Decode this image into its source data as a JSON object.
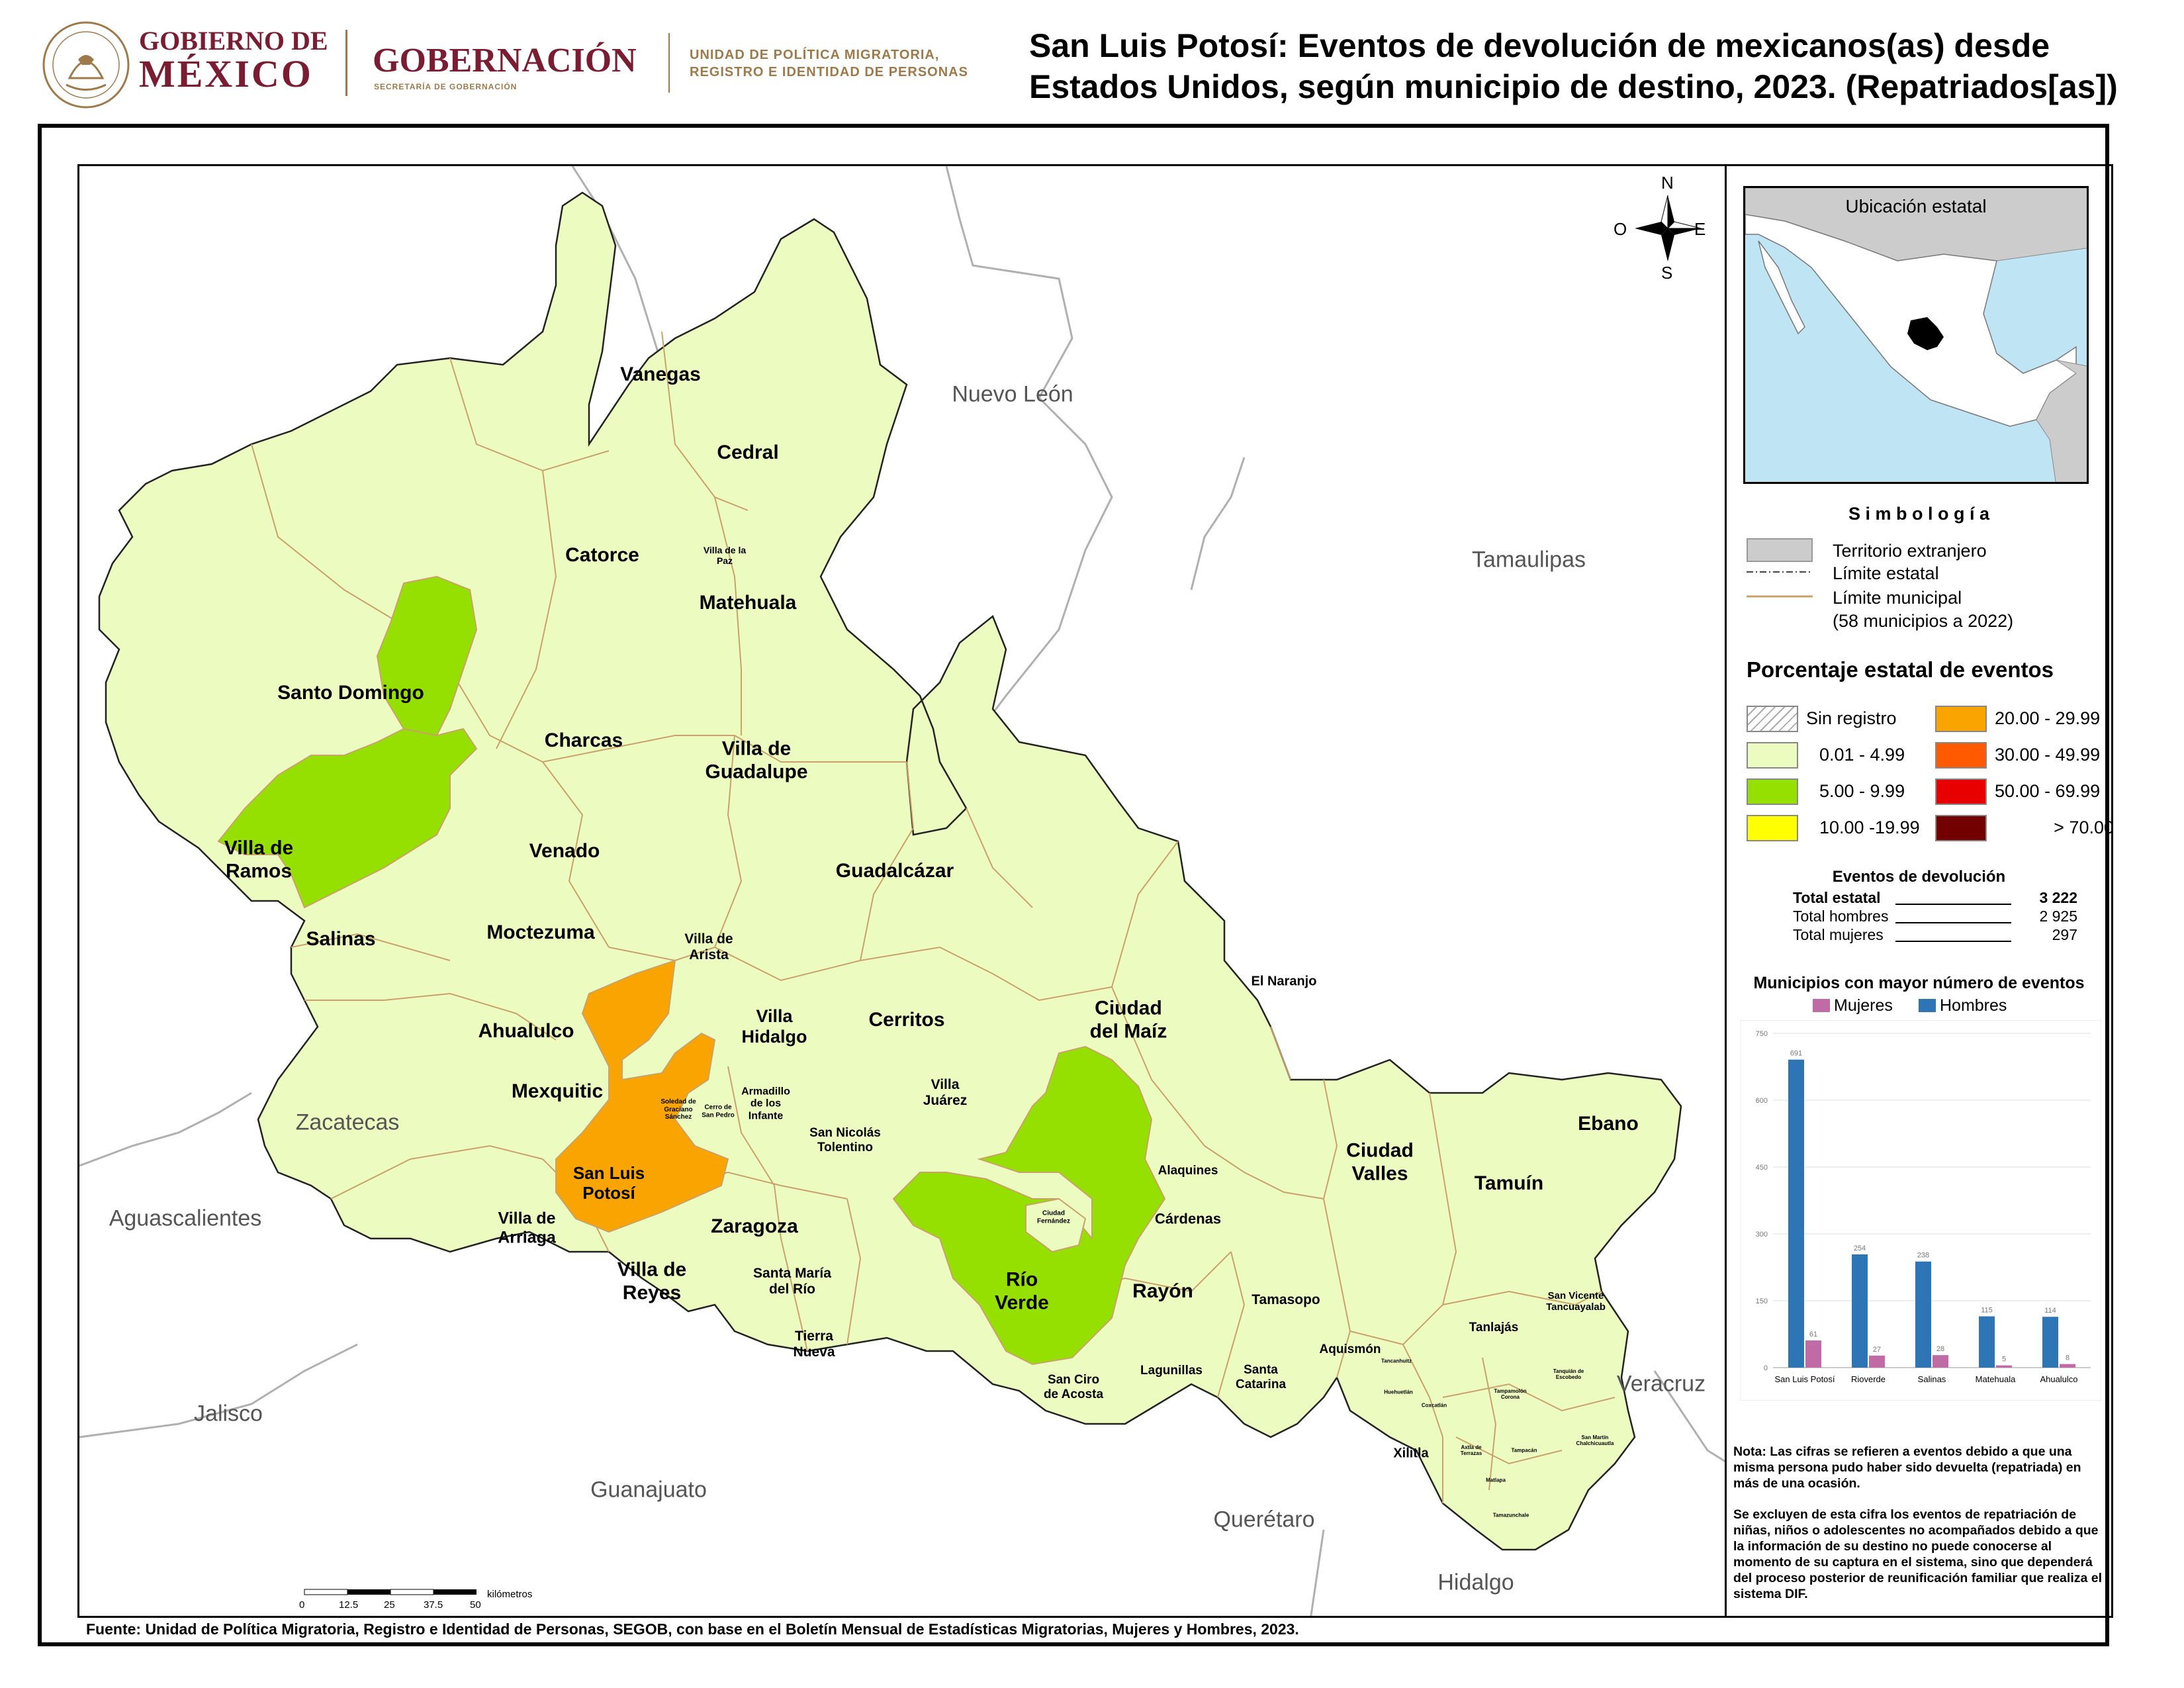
{
  "header": {
    "gov_line1": "GOBIERNO DE",
    "gov_line2": "MÉXICO",
    "ministry": "GOBERNACIÓN",
    "ministry_sub": "SECRETARÍA DE GOBERNACIÓN",
    "unit_line1": "UNIDAD DE POLÍTICA MIGRATORIA,",
    "unit_line2": "REGISTRO E IDENTIDAD DE PERSONAS",
    "title_line1": "San Luis Potosí: Eventos de devolución de mexicanos(as) desde",
    "title_line2": "Estados Unidos, según municipio de destino, 2023. (Repatriados[as])"
  },
  "colors": {
    "c_low": "#ecfcc0",
    "c_mid": "#95e000",
    "c_orange": "#f9a400",
    "c_foreign": "#cccccc",
    "muni_border": "#c9a26b"
  },
  "compass": {
    "n": "N",
    "s": "S",
    "e": "E",
    "w": "O"
  },
  "neighbor_states": [
    {
      "name": "Nuevo León"
    },
    {
      "name": "Tamaulipas"
    },
    {
      "name": "Zacatecas"
    },
    {
      "name": "Aguascalientes"
    },
    {
      "name": "Jalisco"
    },
    {
      "name": "Guanajuato"
    },
    {
      "name": "Querétaro"
    },
    {
      "name": "Hidalgo"
    },
    {
      "name": "Veracruz"
    }
  ],
  "municipalities": [
    "Vanegas",
    "Cedral",
    "Catorce",
    "Villa de la Paz",
    "Matehuala",
    "Santo Domingo",
    "Charcas",
    "Villa de Guadalupe",
    "Villa de Ramos",
    "Venado",
    "Guadalcázar",
    "Salinas",
    "Moctezuma",
    "Villa de Arista",
    "Villa Hidalgo",
    "Cerritos",
    "Ciudad del Maíz",
    "El Naranjo",
    "Ahualulco",
    "Mexquitic",
    "Armadillo de los Infante",
    "Soledad de Graciano Sánchez",
    "Cerro de San Pedro",
    "Villa Juárez",
    "San Nicolás Tolentino",
    "San Luis Potosí",
    "Alaquines",
    "Ciudad Valles",
    "Tamuín",
    "Ebano",
    "Villa de Arriaga",
    "Zaragoza",
    "Ciudad Fernández",
    "Cárdenas",
    "Villa de Reyes",
    "Santa María del Río",
    "Río Verde",
    "Rayón",
    "Tamasopo",
    "San Vicente Tancuayalab",
    "Tanlajás",
    "Tierra Nueva",
    "San Ciro de Acosta",
    "Lagunillas",
    "Santa Catarina",
    "Aquismón",
    "Tancanhuitz",
    "Tanquián de Escobedo",
    "Huehuetlán",
    "Tampamolón Corona",
    "Coxcatlán",
    "Axtla de Terrazas",
    "Tampacán",
    "San Martín Chalchicuautla",
    "Xilitla",
    "Matlapa",
    "Tamazunchale"
  ],
  "scale": {
    "ticks": [
      "0",
      "12.5",
      "25",
      "37.5",
      "50"
    ],
    "unit": "kilómetros"
  },
  "inset": {
    "title": "Ubicación estatal"
  },
  "legend": {
    "title": "S i m b o l o g í a",
    "items": [
      "Territorio extranjero",
      "Límite estatal",
      "Límite municipal",
      "(58 municipios a 2022)"
    ],
    "pct_title": "Porcentaje estatal de eventos",
    "classes": [
      {
        "label": "Sin registro",
        "color": "hatch"
      },
      {
        "label": "0.01  - 4.99",
        "color": "#ecfcc0"
      },
      {
        "label": "5.00  - 9.99",
        "color": "#95e000"
      },
      {
        "label": "10.00 -19.99",
        "color": "#ffff00"
      },
      {
        "label": "20.00 - 29.99",
        "color": "#f9a400"
      },
      {
        "label": "30.00 - 49.99",
        "color": "#ff5a00"
      },
      {
        "label": "50.00 - 69.99",
        "color": "#e80000"
      },
      {
        "label": "> 70.00",
        "color": "#730000"
      }
    ]
  },
  "events": {
    "title": "Eventos de devolución",
    "total_label": "Total estatal",
    "total_value": "3 222",
    "men_label": "Total hombres",
    "men_value": "2 925",
    "women_label": "Total mujeres",
    "women_value": "297"
  },
  "chart_data": {
    "type": "bar",
    "title": "Municipios con mayor número de eventos",
    "categories": [
      "San Luis Potosí",
      "Rioverde",
      "Salinas",
      "Matehuala",
      "Ahualulco"
    ],
    "series": [
      {
        "name": "Mujeres",
        "values": [
          61,
          27,
          28,
          5,
          8
        ],
        "color": "#c06aa6"
      },
      {
        "name": "Hombres",
        "values": [
          691,
          254,
          238,
          115,
          114
        ],
        "color": "#2e75b6"
      }
    ],
    "ylim": [
      0,
      750
    ],
    "yticks": [
      0,
      150,
      300,
      450,
      600,
      750
    ],
    "legend": "top"
  },
  "notes": {
    "note1": "Nota: Las cifras se refieren a eventos debido a que una misma persona pudo haber sido devuelta (repatriada) en más de una ocasión.",
    "note2": "Se excluyen de esta cifra los eventos de repatriación de niñas, niños o adolescentes no acompañados debido a que la información de su destino no puede conocerse al momento de su captura en el sistema, sino que dependerá del proceso posterior de reunificación familiar que realiza el sistema DIF."
  },
  "source": "Fuente: Unidad de Política Migratoria, Registro e Identidad de Personas, SEGOB, con base en el Boletín Mensual de Estadísticas Migratorias, Mujeres y Hombres, 2023."
}
